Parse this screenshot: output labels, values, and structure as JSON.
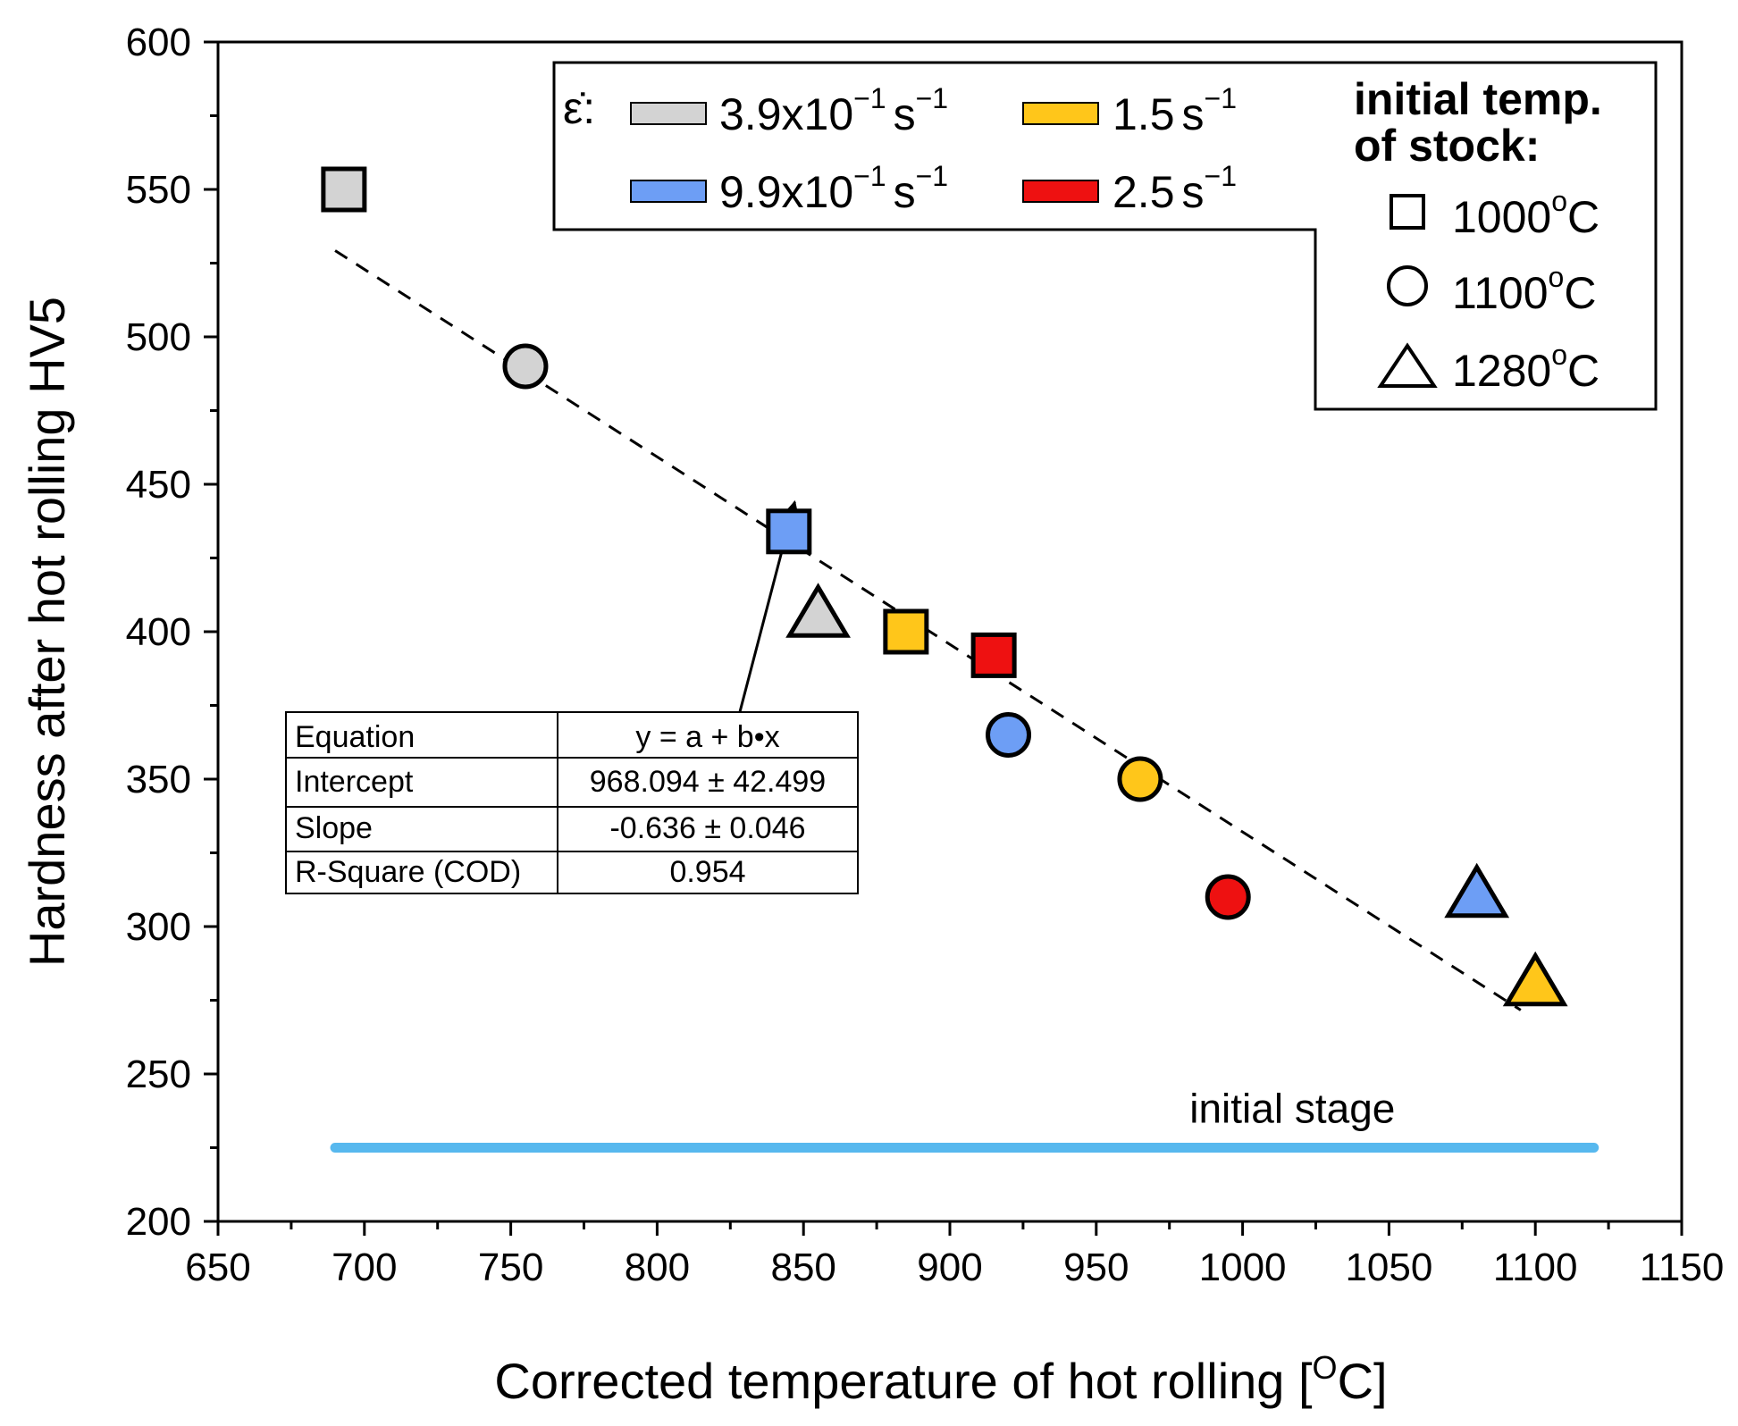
{
  "chart_data": {
    "type": "scatter",
    "xlabel": "Corrected temperature of hot rolling [",
    "xlabel_unit": "O",
    "xlabel_end": "C]",
    "ylabel": "Hardness after hot rolling HV5",
    "xlim": [
      650,
      1150
    ],
    "ylim": [
      200,
      600
    ],
    "x_ticks": [
      "650",
      "700",
      "750",
      "800",
      "850",
      "900",
      "950",
      "1000",
      "1050",
      "1100",
      "1150"
    ],
    "y_ticks": [
      "200",
      "250",
      "300",
      "350",
      "400",
      "450",
      "500",
      "550",
      "600"
    ],
    "strain_rate_symbol": "ε̇:",
    "strain_rate_legend": [
      {
        "key": "gray",
        "mantissa": "3.9x10",
        "exp": "−1",
        "unit": "s",
        "unit_exp": "−1",
        "color": "#d3d3d3"
      },
      {
        "key": "yellow",
        "mantissa": "1.5",
        "exp": "",
        "unit": "s",
        "unit_exp": "−1",
        "color": "#ffc61a"
      },
      {
        "key": "blue",
        "mantissa": "9.9x10",
        "exp": "−1",
        "unit": "s",
        "unit_exp": "−1",
        "color": "#6d9ef5"
      },
      {
        "key": "red",
        "mantissa": "2.5",
        "exp": "",
        "unit": "s",
        "unit_exp": "−1",
        "color": "#ee1111"
      }
    ],
    "temp_legend_title_1": "initial temp.",
    "temp_legend_title_2": "of stock:",
    "temp_legend": [
      {
        "shape": "square",
        "label": "1000",
        "unit_sup": "o",
        "unit": "C"
      },
      {
        "shape": "circle",
        "label": "1100",
        "unit_sup": "o",
        "unit": "C"
      },
      {
        "shape": "triangle",
        "label": "1280",
        "unit_sup": "o",
        "unit": "C"
      }
    ],
    "points": [
      {
        "x": 693,
        "y": 550,
        "shape": "square",
        "rate": "gray"
      },
      {
        "x": 755,
        "y": 490,
        "shape": "circle",
        "rate": "gray"
      },
      {
        "x": 845,
        "y": 434,
        "shape": "square",
        "rate": "blue"
      },
      {
        "x": 855,
        "y": 406,
        "shape": "triangle",
        "rate": "gray"
      },
      {
        "x": 885,
        "y": 400,
        "shape": "square",
        "rate": "yellow"
      },
      {
        "x": 915,
        "y": 392,
        "shape": "square",
        "rate": "red"
      },
      {
        "x": 920,
        "y": 365,
        "shape": "circle",
        "rate": "blue"
      },
      {
        "x": 965,
        "y": 350,
        "shape": "circle",
        "rate": "yellow"
      },
      {
        "x": 995,
        "y": 310,
        "shape": "circle",
        "rate": "red"
      },
      {
        "x": 1080,
        "y": 311,
        "shape": "triangle",
        "rate": "blue"
      },
      {
        "x": 1100,
        "y": 281,
        "shape": "triangle",
        "rate": "yellow"
      }
    ],
    "fit_line": {
      "x_start": 690,
      "x_end": 1095,
      "intercept": 968.094,
      "slope": -0.636
    },
    "arrow": {
      "from": [
        827,
        368
      ],
      "to": [
        847,
        444
      ]
    },
    "fit_table": {
      "rows": [
        {
          "label": "Equation",
          "value": "y = a + b•x"
        },
        {
          "label": "Intercept",
          "value": "968.094 ± 42.499"
        },
        {
          "label": "Slope",
          "value": "-0.636 ± 0.046"
        },
        {
          "label": "R-Square (COD)",
          "value": "0.954"
        }
      ]
    },
    "initial_stage": {
      "label": "initial stage",
      "y": 225,
      "x_start": 690,
      "x_end": 1120,
      "color": "#57b8ee"
    }
  }
}
